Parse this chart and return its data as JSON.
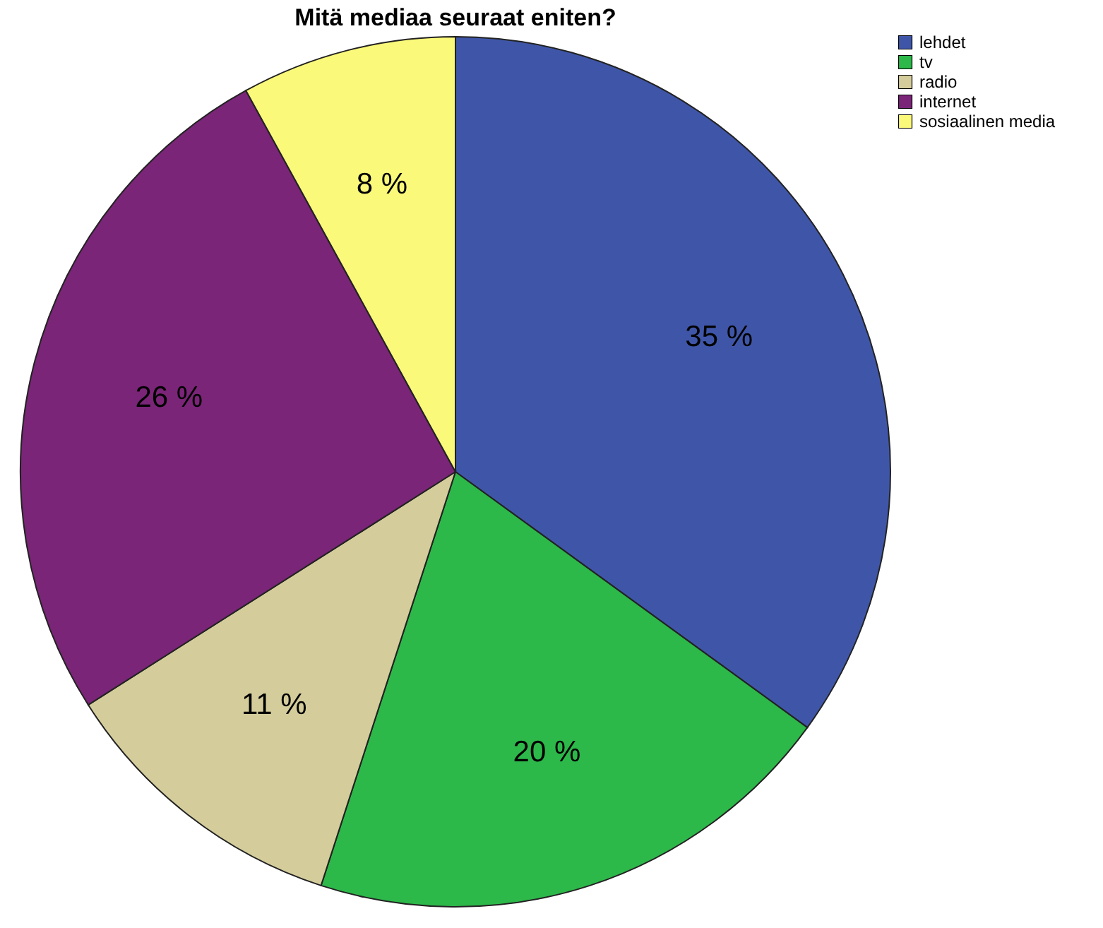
{
  "chart_data": {
    "type": "pie",
    "title": "Mitä mediaa seuraat eniten?",
    "categories": [
      "lehdet",
      "tv",
      "radio",
      "internet",
      "sosiaalinen media"
    ],
    "values": [
      35,
      20,
      11,
      26,
      8
    ],
    "colors": [
      "#3f56a8",
      "#2db84a",
      "#d4cd9b",
      "#7a2577",
      "#fbf97a"
    ],
    "value_labels": [
      "35 %",
      "20 %",
      "11 %",
      "26 %",
      "8 %"
    ],
    "legend": "top right"
  }
}
